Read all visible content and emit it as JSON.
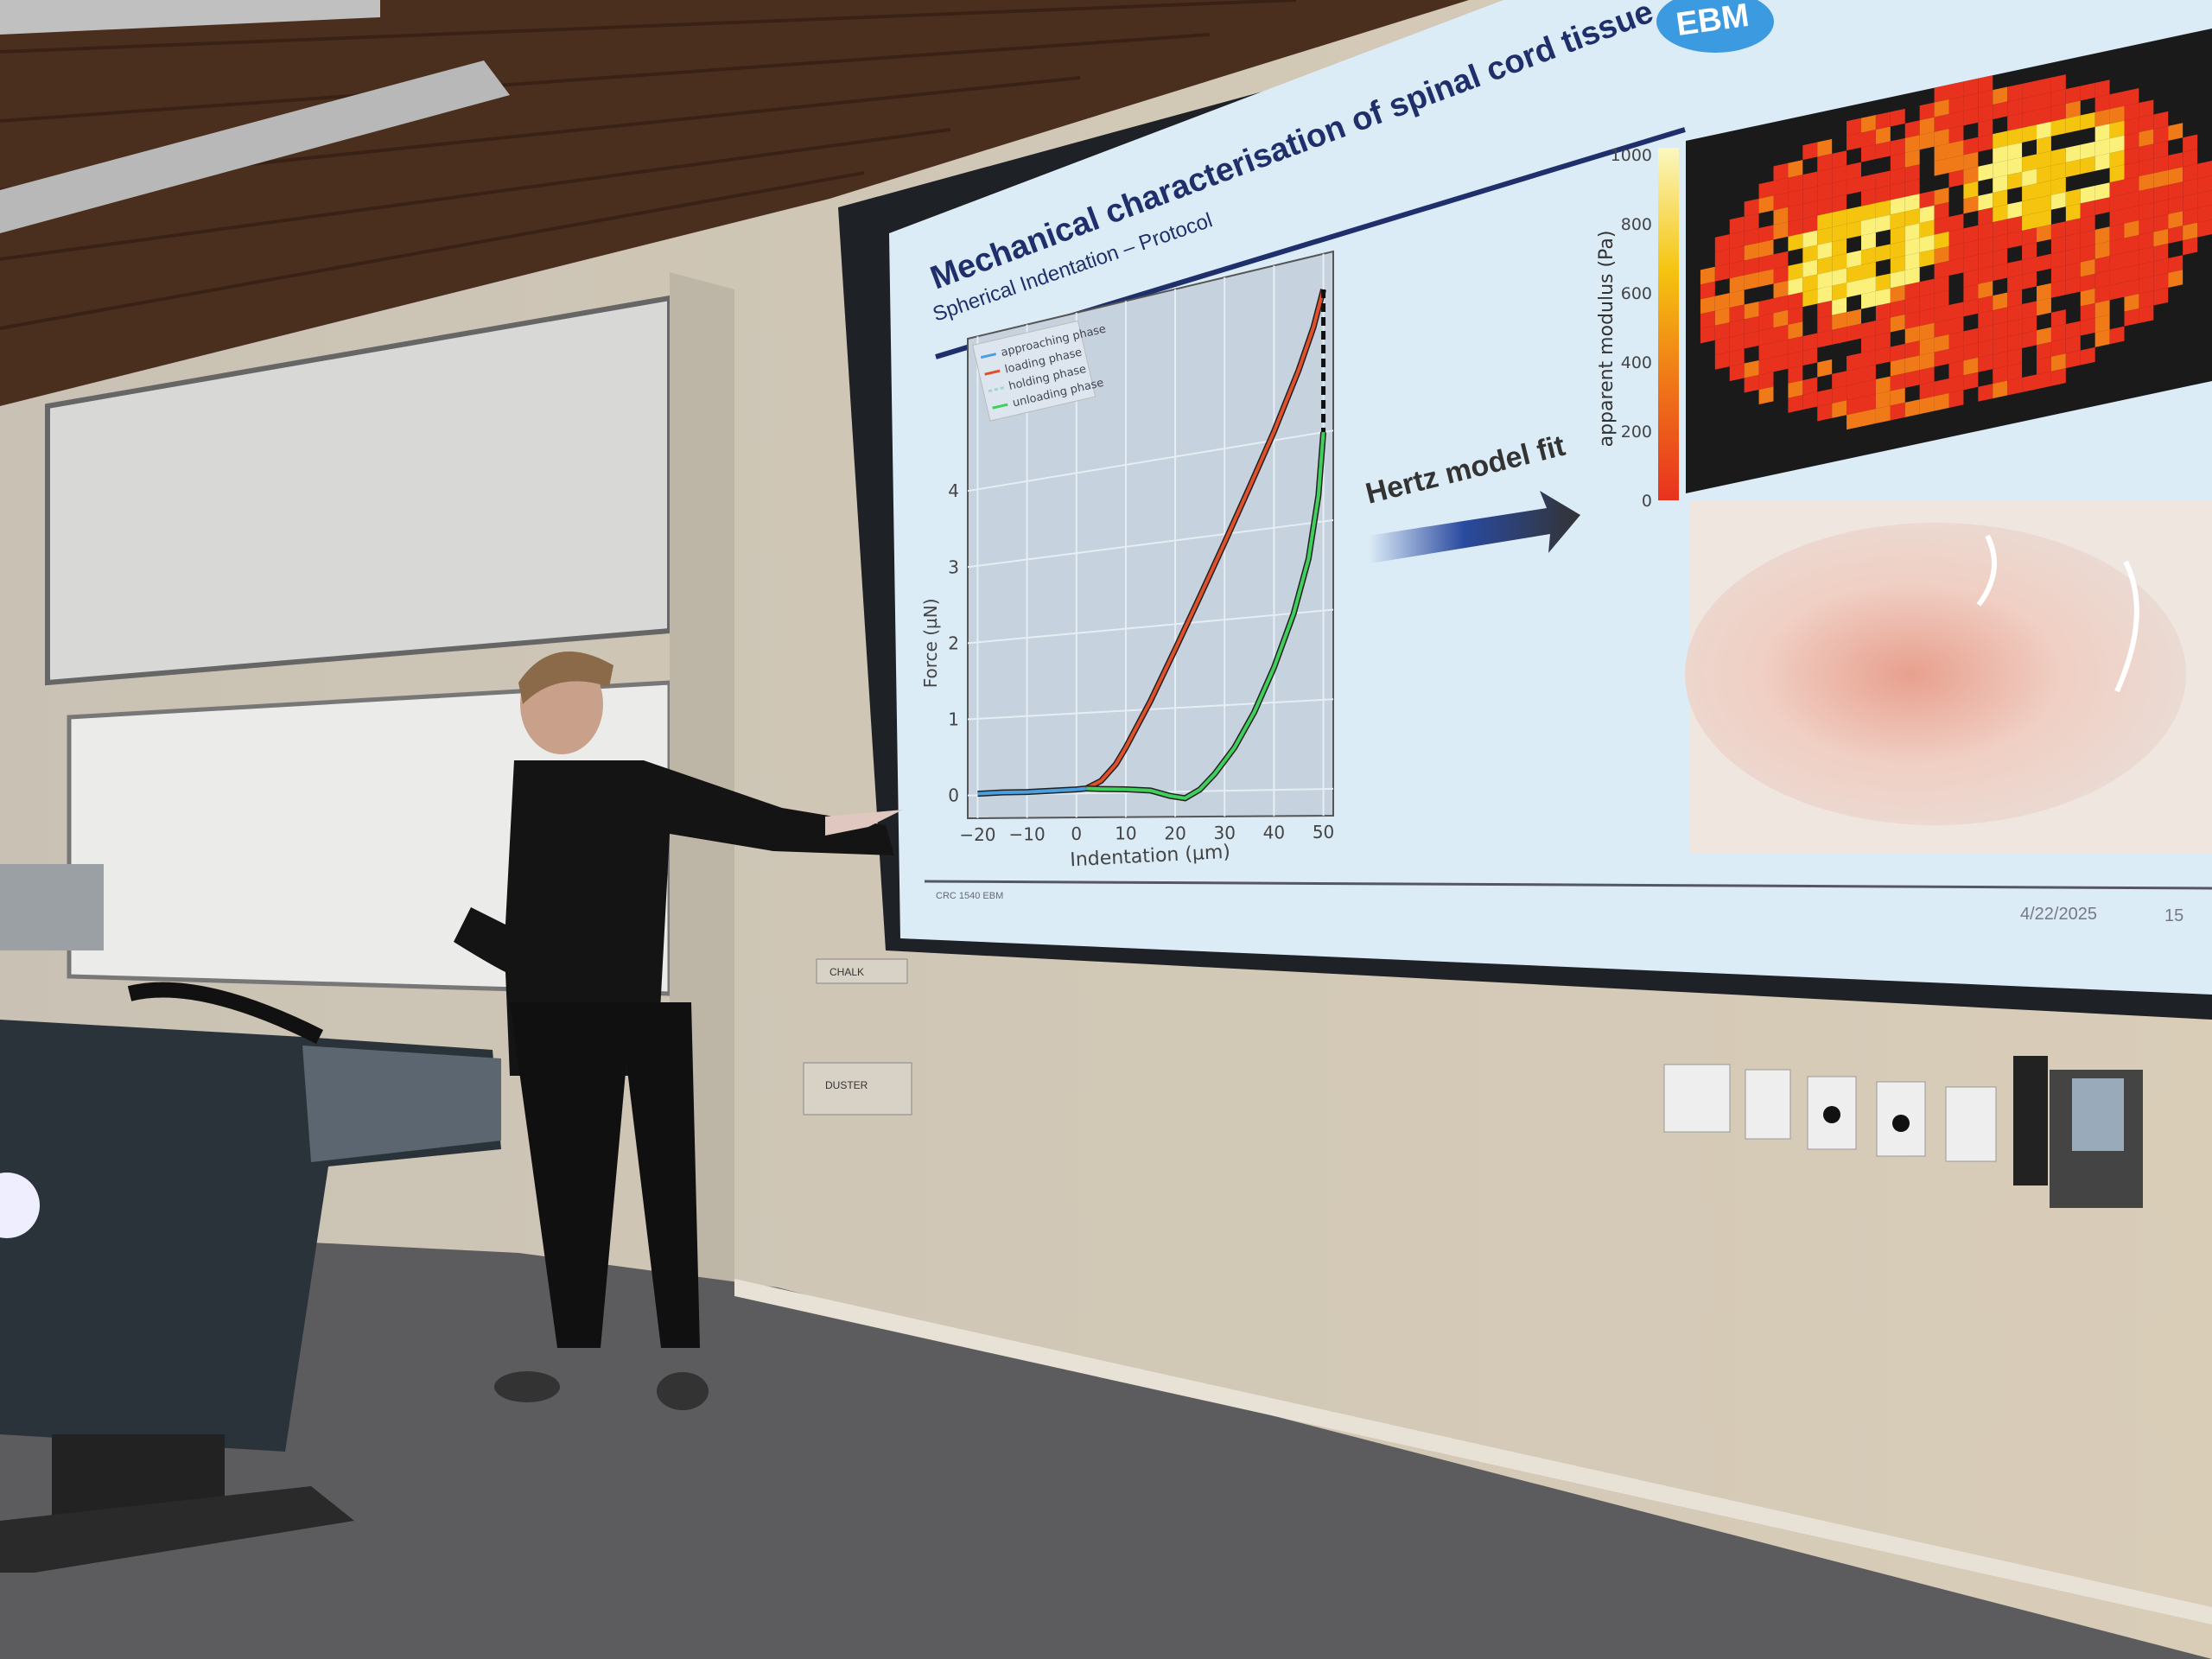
{
  "slide": {
    "title": "Mechanical characterisation of spinal cord tissue",
    "subtitle": "Spherical Indentation – Protocol",
    "arrow_label": "Hertz model fit",
    "footer_left": "CRC 1540 EBM",
    "date": "4/22/2025",
    "page_number": "15",
    "logo_text": "EBM",
    "colors": {
      "title": "#1f2f6b",
      "rule": "#1f2f6b",
      "background": "#dcecf7"
    }
  },
  "room": {
    "chalk_label": "CHALK",
    "duster_label": "DUSTER"
  },
  "chart_data": [
    {
      "type": "line",
      "xlabel": "Indentation (µm)",
      "ylabel": "Force (µN)",
      "xlim": [
        -22,
        52
      ],
      "ylim": [
        -0.3,
        6
      ],
      "xticks": [
        "−20",
        "−10",
        "0",
        "10",
        "20",
        "30",
        "40",
        "50"
      ],
      "xtick_values": [
        -20,
        -10,
        0,
        10,
        20,
        30,
        40,
        50
      ],
      "yticks": [
        "0",
        "1",
        "2",
        "3",
        "4"
      ],
      "ytick_values": [
        0,
        1,
        2,
        3,
        4
      ],
      "grid": true,
      "legend_placement": "top-left",
      "series": [
        {
          "name": "approaching phase",
          "color": "#4a9fe0",
          "style": "solid",
          "x": [
            -20,
            -15,
            -10,
            -5,
            0,
            2
          ],
          "y": [
            0.02,
            0.03,
            0.03,
            0.04,
            0.05,
            0.06
          ]
        },
        {
          "name": "loading phase",
          "color": "#e0502a",
          "style": "solid",
          "x": [
            2,
            5,
            8,
            10,
            15,
            20,
            25,
            30,
            35,
            40,
            45,
            48,
            50
          ],
          "y": [
            0.06,
            0.15,
            0.35,
            0.55,
            1.1,
            1.7,
            2.3,
            2.9,
            3.5,
            4.1,
            4.75,
            5.2,
            5.6
          ]
        },
        {
          "name": "holding phase",
          "color": "#9fd8c8",
          "style": "dashed",
          "x": [
            50,
            50
          ],
          "y": [
            5.6,
            4.0
          ]
        },
        {
          "name": "unloading phase",
          "color": "#3fcf5a",
          "style": "solid",
          "x": [
            50,
            49,
            47,
            44,
            40,
            36,
            32,
            28,
            25,
            22,
            19,
            15,
            10,
            5,
            2
          ],
          "y": [
            4.0,
            3.3,
            2.6,
            2.0,
            1.4,
            0.9,
            0.5,
            0.2,
            0.02,
            -0.08,
            -0.05,
            0.02,
            0.04,
            0.05,
            0.06
          ]
        }
      ]
    },
    {
      "type": "heatmap",
      "colorbar_label": "apparent modulus (Pa)",
      "colorbar_ticks": [
        "0",
        "200",
        "400",
        "600",
        "800",
        "1000"
      ],
      "colorbar_range": [
        0,
        1000
      ],
      "colorscale": [
        "#e8321e",
        "#f07a18",
        "#f5c40f",
        "#fbf07a"
      ]
    }
  ]
}
